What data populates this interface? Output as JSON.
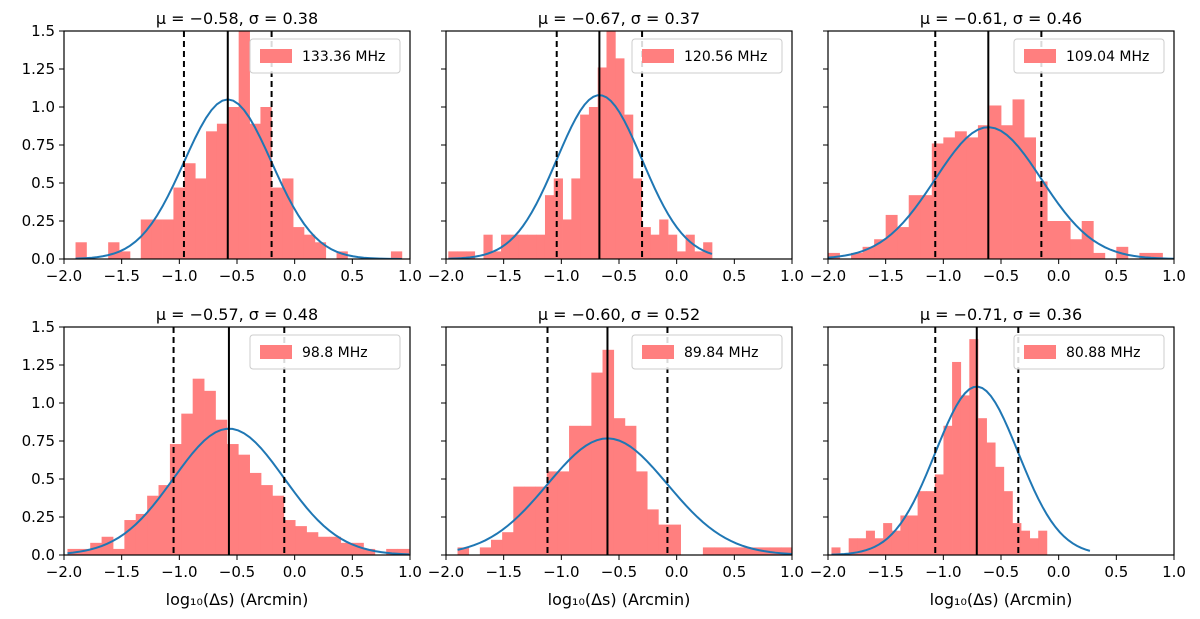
{
  "figure": {
    "xlabel": "log₁₀(Δs) (Arcmin)",
    "xticks": [
      "−2.0",
      "−1.5",
      "−1.0",
      "−0.5",
      "0.0",
      "0.5",
      "1.0"
    ],
    "yticks": [
      "0.0",
      "0.25",
      "0.5",
      "0.75",
      "1.0",
      "1.25",
      "1.5"
    ],
    "hist_color": "#ff7f7f",
    "curve_color": "#1f77b4"
  },
  "chart_data": [
    {
      "type": "bar",
      "title": "μ = −0.58, σ = 0.38",
      "legend": "133.36 MHz",
      "mu": -0.58,
      "sigma": 0.38,
      "xlim": [
        -2.0,
        1.0
      ],
      "ylim": [
        0,
        1.5
      ],
      "hist": {
        "start": -1.9,
        "width": 0.0943,
        "heights": [
          0.11,
          0.0,
          0.0,
          0.11,
          0.05,
          0.0,
          0.26,
          0.26,
          0.26,
          0.47,
          0.63,
          0.53,
          0.84,
          0.89,
          1.0,
          1.5,
          0.89,
          1.0,
          0.47,
          0.53,
          0.21,
          0.16,
          0.11,
          0.0,
          0.05,
          0.0,
          0.0,
          0.0,
          0.0,
          0.05
        ]
      }
    },
    {
      "type": "bar",
      "title": "μ = −0.67, σ = 0.37",
      "legend": "120.56 MHz",
      "mu": -0.67,
      "sigma": 0.37,
      "xlim": [
        -2.0,
        1.0
      ],
      "ylim": [
        0,
        1.5
      ],
      "hist": {
        "start": -1.98,
        "width": 0.0762,
        "heights": [
          0.05,
          0.05,
          0.05,
          0.0,
          0.16,
          0.05,
          0.16,
          0.16,
          0.16,
          0.16,
          0.16,
          0.42,
          0.53,
          0.26,
          0.53,
          0.95,
          1.0,
          1.26,
          1.5,
          1.32,
          0.95,
          0.53,
          0.21,
          0.16,
          0.26,
          0.16,
          0.05,
          0.16,
          0.05,
          0.11
        ]
      }
    },
    {
      "type": "bar",
      "title": "μ = −0.61, σ = 0.46",
      "legend": "109.04 MHz",
      "mu": -0.61,
      "sigma": 0.46,
      "xlim": [
        -2.0,
        1.0
      ],
      "ylim": [
        0,
        1.5
      ],
      "hist": {
        "start": -2.0,
        "width": 0.1,
        "heights": [
          0.04,
          0.0,
          0.04,
          0.08,
          0.13,
          0.29,
          0.21,
          0.42,
          0.42,
          0.76,
          0.8,
          0.84,
          0.8,
          0.88,
          1.01,
          0.88,
          1.05,
          0.8,
          0.51,
          0.25,
          0.25,
          0.13,
          0.25,
          0.04,
          0.0,
          0.08,
          0.0,
          0.04,
          0.04,
          0.0
        ]
      }
    },
    {
      "type": "bar",
      "title": "μ = −0.57, σ = 0.48",
      "legend": "98.8 MHz",
      "mu": -0.57,
      "sigma": 0.48,
      "xlim": [
        -2.0,
        1.0
      ],
      "ylim": [
        0,
        1.5
      ],
      "hist": {
        "start": -1.97,
        "width": 0.0987,
        "heights": [
          0.04,
          0.04,
          0.08,
          0.12,
          0.04,
          0.23,
          0.27,
          0.39,
          0.46,
          0.73,
          0.93,
          1.16,
          1.08,
          0.89,
          0.73,
          0.66,
          0.54,
          0.46,
          0.39,
          0.23,
          0.19,
          0.15,
          0.12,
          0.12,
          0.08,
          0.08,
          0.04,
          0.0,
          0.04,
          0.04
        ]
      }
    },
    {
      "type": "bar",
      "title": "μ = −0.60, σ = 0.52",
      "legend": "89.84 MHz",
      "mu": -0.6,
      "sigma": 0.52,
      "xlim": [
        -2.0,
        1.0
      ],
      "ylim": [
        0,
        1.5
      ],
      "hist": {
        "start": -1.9,
        "width": 0.0967,
        "heights": [
          0.05,
          0.0,
          0.05,
          0.1,
          0.15,
          0.45,
          0.45,
          0.45,
          0.55,
          0.55,
          0.85,
          0.85,
          1.2,
          1.35,
          0.9,
          0.85,
          0.55,
          0.3,
          0.2,
          0.2,
          0.0,
          0.0,
          0.05,
          0.05,
          0.05,
          0.05,
          0.05,
          0.05,
          0.05,
          0.05
        ]
      }
    },
    {
      "type": "bar",
      "title": "μ = −0.71, σ = 0.36",
      "legend": "80.88 MHz",
      "mu": -0.71,
      "sigma": 0.36,
      "xlim": [
        -2.0,
        1.0
      ],
      "ylim": [
        0,
        1.5
      ],
      "hist": {
        "start": -1.97,
        "width": 0.0747,
        "heights": [
          0.05,
          0.0,
          0.11,
          0.11,
          0.16,
          0.11,
          0.21,
          0.16,
          0.26,
          0.26,
          0.42,
          0.42,
          0.53,
          0.85,
          1.27,
          1.05,
          1.42,
          0.9,
          0.74,
          0.58,
          0.42,
          0.21,
          0.16,
          0.11,
          0.16,
          0.0,
          0.0,
          0.0,
          0.0,
          0.0
        ]
      }
    }
  ]
}
